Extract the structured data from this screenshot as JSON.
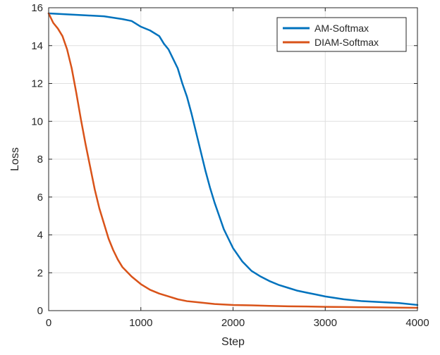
{
  "chart_data": {
    "type": "line",
    "title": "",
    "xlabel": "Step",
    "ylabel": "Loss",
    "xlim": [
      0,
      4000
    ],
    "ylim": [
      0,
      16
    ],
    "xticks": [
      0,
      1000,
      2000,
      3000,
      4000
    ],
    "yticks": [
      0,
      2,
      4,
      6,
      8,
      10,
      12,
      14,
      16
    ],
    "xtick_labels": [
      "0",
      "1000",
      "2000",
      "3000",
      "4000"
    ],
    "ytick_labels": [
      "0",
      "2",
      "4",
      "6",
      "8",
      "10",
      "12",
      "14",
      "16"
    ],
    "grid": true,
    "legend_position": "top-right",
    "series": [
      {
        "name": "AM-Softmax",
        "color": "#0072BD",
        "x": [
          0,
          200,
          400,
          600,
          800,
          900,
          1000,
          1100,
          1200,
          1250,
          1300,
          1350,
          1400,
          1450,
          1500,
          1550,
          1600,
          1650,
          1700,
          1750,
          1800,
          1850,
          1900,
          1950,
          2000,
          2100,
          2200,
          2300,
          2400,
          2500,
          2600,
          2700,
          2800,
          2900,
          3000,
          3200,
          3400,
          3600,
          3800,
          4000
        ],
        "y": [
          15.7,
          15.65,
          15.6,
          15.55,
          15.4,
          15.3,
          15.0,
          14.8,
          14.5,
          14.1,
          13.8,
          13.3,
          12.8,
          12.0,
          11.3,
          10.4,
          9.4,
          8.4,
          7.4,
          6.5,
          5.7,
          5.0,
          4.3,
          3.8,
          3.3,
          2.6,
          2.1,
          1.8,
          1.55,
          1.35,
          1.2,
          1.05,
          0.95,
          0.85,
          0.75,
          0.6,
          0.5,
          0.45,
          0.4,
          0.3
        ]
      },
      {
        "name": "DIAM-Softmax",
        "color": "#D95319",
        "x": [
          0,
          50,
          100,
          150,
          200,
          250,
          300,
          350,
          400,
          450,
          500,
          550,
          600,
          650,
          700,
          750,
          800,
          900,
          1000,
          1100,
          1200,
          1300,
          1400,
          1500,
          1600,
          1800,
          2000,
          2200,
          2400,
          2600,
          2800,
          3000,
          3200,
          3400,
          3600,
          3800,
          4000
        ],
        "y": [
          15.7,
          15.2,
          14.9,
          14.5,
          13.8,
          12.8,
          11.5,
          10.1,
          8.8,
          7.6,
          6.4,
          5.4,
          4.6,
          3.8,
          3.2,
          2.7,
          2.3,
          1.8,
          1.4,
          1.1,
          0.9,
          0.75,
          0.6,
          0.5,
          0.45,
          0.35,
          0.3,
          0.28,
          0.25,
          0.23,
          0.22,
          0.2,
          0.19,
          0.18,
          0.17,
          0.16,
          0.15
        ]
      }
    ]
  }
}
